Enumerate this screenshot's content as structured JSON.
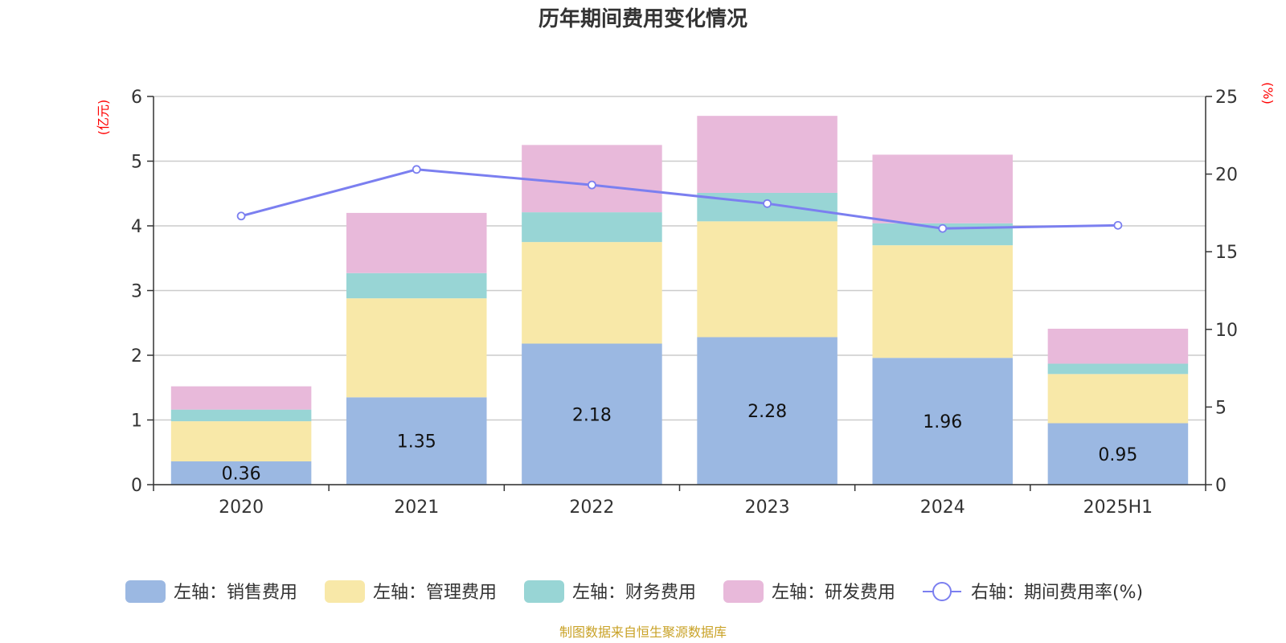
{
  "chart_data": {
    "type": "bar",
    "stacked": true,
    "title": "历年期间费用变化情况",
    "categories": [
      "2020",
      "2021",
      "2022",
      "2023",
      "2024",
      "2025H1"
    ],
    "left_axis": {
      "unit": "(亿元)",
      "ylim": [
        0,
        6
      ],
      "ticks": [
        "0",
        "1",
        "2",
        "3",
        "4",
        "5",
        "6"
      ]
    },
    "right_axis": {
      "unit": "(%)",
      "ylim": [
        0,
        25
      ],
      "ticks": [
        "0",
        "5",
        "10",
        "15",
        "20",
        "25"
      ]
    },
    "series": [
      {
        "name": "左轴：销售费用",
        "axis": "left",
        "color": "#9bb8e2",
        "values": [
          0.36,
          1.35,
          2.18,
          2.28,
          1.96,
          0.95
        ],
        "labels": [
          "0.36",
          "1.35",
          "2.18",
          "2.28",
          "1.96",
          "0.95"
        ]
      },
      {
        "name": "左轴：管理费用",
        "axis": "left",
        "color": "#f8e8a8",
        "values": [
          0.62,
          1.53,
          1.57,
          1.79,
          1.74,
          0.76
        ]
      },
      {
        "name": "左轴：财务费用",
        "axis": "left",
        "color": "#98d5d5",
        "values": [
          0.18,
          0.39,
          0.46,
          0.44,
          0.34,
          0.16
        ]
      },
      {
        "name": "左轴：研发费用",
        "axis": "left",
        "color": "#e8b9da",
        "values": [
          0.36,
          0.93,
          1.04,
          1.19,
          1.06,
          0.54
        ]
      },
      {
        "name": "右轴：期间费用率(%)",
        "axis": "right",
        "type": "line",
        "color": "#7b7ff0",
        "values": [
          17.3,
          20.3,
          19.3,
          18.1,
          16.5,
          16.7
        ]
      }
    ],
    "grid": true,
    "legend_position": "bottom"
  },
  "footer": {
    "source": "制图数据来自恒生聚源数据库"
  }
}
